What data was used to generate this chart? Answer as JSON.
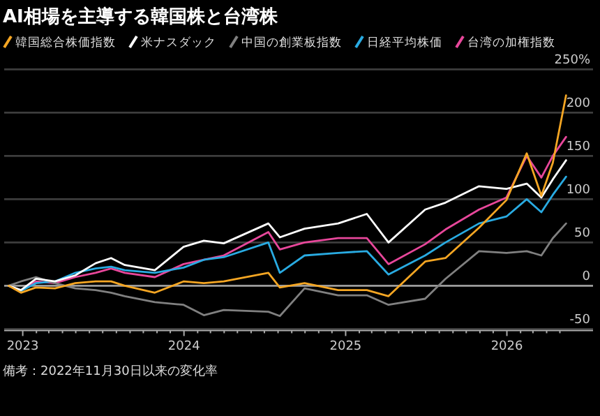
{
  "chart_data": {
    "type": "line",
    "title": "AI相場を主導する韓国株と台湾株",
    "x": [
      "2022-11-30",
      "2022-12-28",
      "2023-01-31",
      "2023-03-15",
      "2023-04-30",
      "2023-06-15",
      "2023-07-20",
      "2023-08-20",
      "2023-10-27",
      "2023-12-31",
      "2024-02-15",
      "2024-03-31",
      "2024-07-10",
      "2024-08-05",
      "2024-09-30",
      "2024-12-15",
      "2025-02-18",
      "2025-04-08",
      "2025-06-30",
      "2025-08-15",
      "2025-10-30",
      "2025-12-31",
      "2026-02-15",
      "2026-03-20",
      "2026-04-15",
      "2026-05-15"
    ],
    "series": [
      {
        "name": "韓国総合株価指数",
        "color": "#f5a623",
        "values": [
          0,
          -8,
          -2,
          -3,
          3,
          5,
          5,
          0,
          -8,
          5,
          3,
          5,
          15,
          -2,
          3,
          -5,
          -5,
          -12,
          28,
          32,
          67,
          99,
          153,
          104,
          142,
          220
        ]
      },
      {
        "name": "米ナスダック",
        "color": "#ffffff",
        "values": [
          0,
          -5,
          8,
          5,
          12,
          26,
          32,
          24,
          18,
          45,
          52,
          49,
          72,
          56,
          66,
          72,
          83,
          50,
          88,
          96,
          115,
          112,
          118,
          102,
          123,
          145
        ]
      },
      {
        "name": "中国の創業板指数",
        "color": "#808080",
        "values": [
          0,
          5,
          10,
          3,
          -3,
          -5,
          -8,
          -12,
          -19,
          -22,
          -34,
          -28,
          -30,
          -35,
          -3,
          -11,
          -11,
          -22,
          -15,
          8,
          40,
          38,
          40,
          35,
          55,
          72
        ]
      },
      {
        "name": "日経平均株価",
        "color": "#29abe2",
        "values": [
          0,
          -6,
          3,
          5,
          15,
          20,
          22,
          18,
          15,
          21,
          30,
          33,
          50,
          15,
          35,
          38,
          40,
          13,
          35,
          50,
          72,
          80,
          100,
          85,
          105,
          126
        ]
      },
      {
        "name": "台湾の加権指数",
        "color": "#e8479b",
        "values": [
          0,
          -6,
          5,
          3,
          10,
          15,
          20,
          15,
          10,
          25,
          30,
          35,
          62,
          42,
          50,
          55,
          55,
          25,
          48,
          65,
          88,
          102,
          150,
          125,
          150,
          172
        ]
      }
    ],
    "xlim": [
      "2022-11-20",
      "2026-07-15"
    ],
    "xticks": [
      {
        "value": "2023-01-01",
        "label": "2023"
      },
      {
        "value": "2023-02-01",
        "label": null
      },
      {
        "value": "2023-03-01",
        "label": null
      },
      {
        "value": "2023-04-01",
        "label": null
      },
      {
        "value": "2023-05-01",
        "label": null
      },
      {
        "value": "2023-06-01",
        "label": null
      },
      {
        "value": "2023-07-01",
        "label": null
      },
      {
        "value": "2023-08-01",
        "label": null
      },
      {
        "value": "2023-09-01",
        "label": null
      },
      {
        "value": "2023-10-01",
        "label": null
      },
      {
        "value": "2023-11-01",
        "label": null
      },
      {
        "value": "2023-12-01",
        "label": null
      },
      {
        "value": "2024-01-01",
        "label": "2024"
      },
      {
        "value": "2024-02-01",
        "label": null
      },
      {
        "value": "2024-03-01",
        "label": null
      },
      {
        "value": "2024-04-01",
        "label": null
      },
      {
        "value": "2024-05-01",
        "label": null
      },
      {
        "value": "2024-06-01",
        "label": null
      },
      {
        "value": "2024-07-01",
        "label": null
      },
      {
        "value": "2024-08-01",
        "label": null
      },
      {
        "value": "2024-09-01",
        "label": null
      },
      {
        "value": "2024-10-01",
        "label": null
      },
      {
        "value": "2024-11-01",
        "label": null
      },
      {
        "value": "2024-12-01",
        "label": null
      },
      {
        "value": "2025-01-01",
        "label": "2025"
      },
      {
        "value": "2025-02-01",
        "label": null
      },
      {
        "value": "2025-03-01",
        "label": null
      },
      {
        "value": "2025-04-01",
        "label": null
      },
      {
        "value": "2025-05-01",
        "label": null
      },
      {
        "value": "2025-06-01",
        "label": null
      },
      {
        "value": "2025-07-01",
        "label": null
      },
      {
        "value": "2025-08-01",
        "label": null
      },
      {
        "value": "2025-09-01",
        "label": null
      },
      {
        "value": "2025-10-01",
        "label": null
      },
      {
        "value": "2025-11-01",
        "label": null
      },
      {
        "value": "2025-12-01",
        "label": null
      },
      {
        "value": "2026-01-01",
        "label": "2026"
      },
      {
        "value": "2026-02-01",
        "label": null
      },
      {
        "value": "2026-03-01",
        "label": null
      },
      {
        "value": "2026-04-01",
        "label": null
      },
      {
        "value": "2026-05-01",
        "label": null
      }
    ],
    "ylim": [
      -50,
      250
    ],
    "yticks": [
      -50,
      0,
      50,
      100,
      150,
      200,
      {
        "value": 250,
        "label": "250%"
      }
    ],
    "grid": "y",
    "legend": "top left",
    "ref_lines": [
      {
        "axis": "y",
        "value": 0,
        "color": "#9a9a9a"
      }
    ],
    "annotations": [
      "備考：2022年11月30日以来の変化率"
    ]
  }
}
